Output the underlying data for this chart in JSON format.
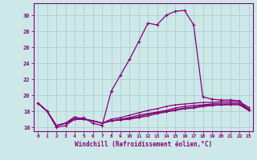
{
  "xlabel": "Windchill (Refroidissement éolien,°C)",
  "background_color": "#cce8e8",
  "grid_color": "#b0cccc",
  "line_color": "#880077",
  "spine_color": "#880077",
  "xlim": [
    -0.5,
    23.5
  ],
  "ylim": [
    15.5,
    31.5
  ],
  "yticks": [
    16,
    18,
    20,
    22,
    24,
    26,
    28,
    30
  ],
  "xticks": [
    0,
    1,
    2,
    3,
    4,
    5,
    6,
    7,
    8,
    9,
    10,
    11,
    12,
    13,
    14,
    15,
    16,
    17,
    18,
    19,
    20,
    21,
    22,
    23
  ],
  "series": [
    [
      19.0,
      18.0,
      16.0,
      16.2,
      17.0,
      17.2,
      16.5,
      16.2,
      20.5,
      22.5,
      24.5,
      26.7,
      29.0,
      28.8,
      30.0,
      30.5,
      30.6,
      28.8,
      19.8,
      19.5,
      19.4,
      19.4,
      19.3,
      18.2
    ],
    [
      19.0,
      18.0,
      16.2,
      16.5,
      17.3,
      17.0,
      16.8,
      16.5,
      17.0,
      17.2,
      17.5,
      17.8,
      18.1,
      18.3,
      18.6,
      18.8,
      18.9,
      19.0,
      19.1,
      19.1,
      19.2,
      19.2,
      19.2,
      18.5
    ],
    [
      19.0,
      18.0,
      16.2,
      16.5,
      17.1,
      17.0,
      16.8,
      16.5,
      16.8,
      17.0,
      17.2,
      17.5,
      17.7,
      17.9,
      18.1,
      18.4,
      18.6,
      18.7,
      18.8,
      18.9,
      19.0,
      19.0,
      19.0,
      18.3
    ],
    [
      19.0,
      18.0,
      16.2,
      16.5,
      17.0,
      17.0,
      16.8,
      16.5,
      16.8,
      16.9,
      17.1,
      17.3,
      17.6,
      17.8,
      18.0,
      18.2,
      18.4,
      18.5,
      18.7,
      18.8,
      18.8,
      18.9,
      18.9,
      18.2
    ],
    [
      19.0,
      18.0,
      16.2,
      16.5,
      17.0,
      17.0,
      16.8,
      16.5,
      16.8,
      16.9,
      17.0,
      17.2,
      17.4,
      17.7,
      17.9,
      18.1,
      18.3,
      18.4,
      18.6,
      18.7,
      18.8,
      18.8,
      18.8,
      18.1
    ]
  ]
}
